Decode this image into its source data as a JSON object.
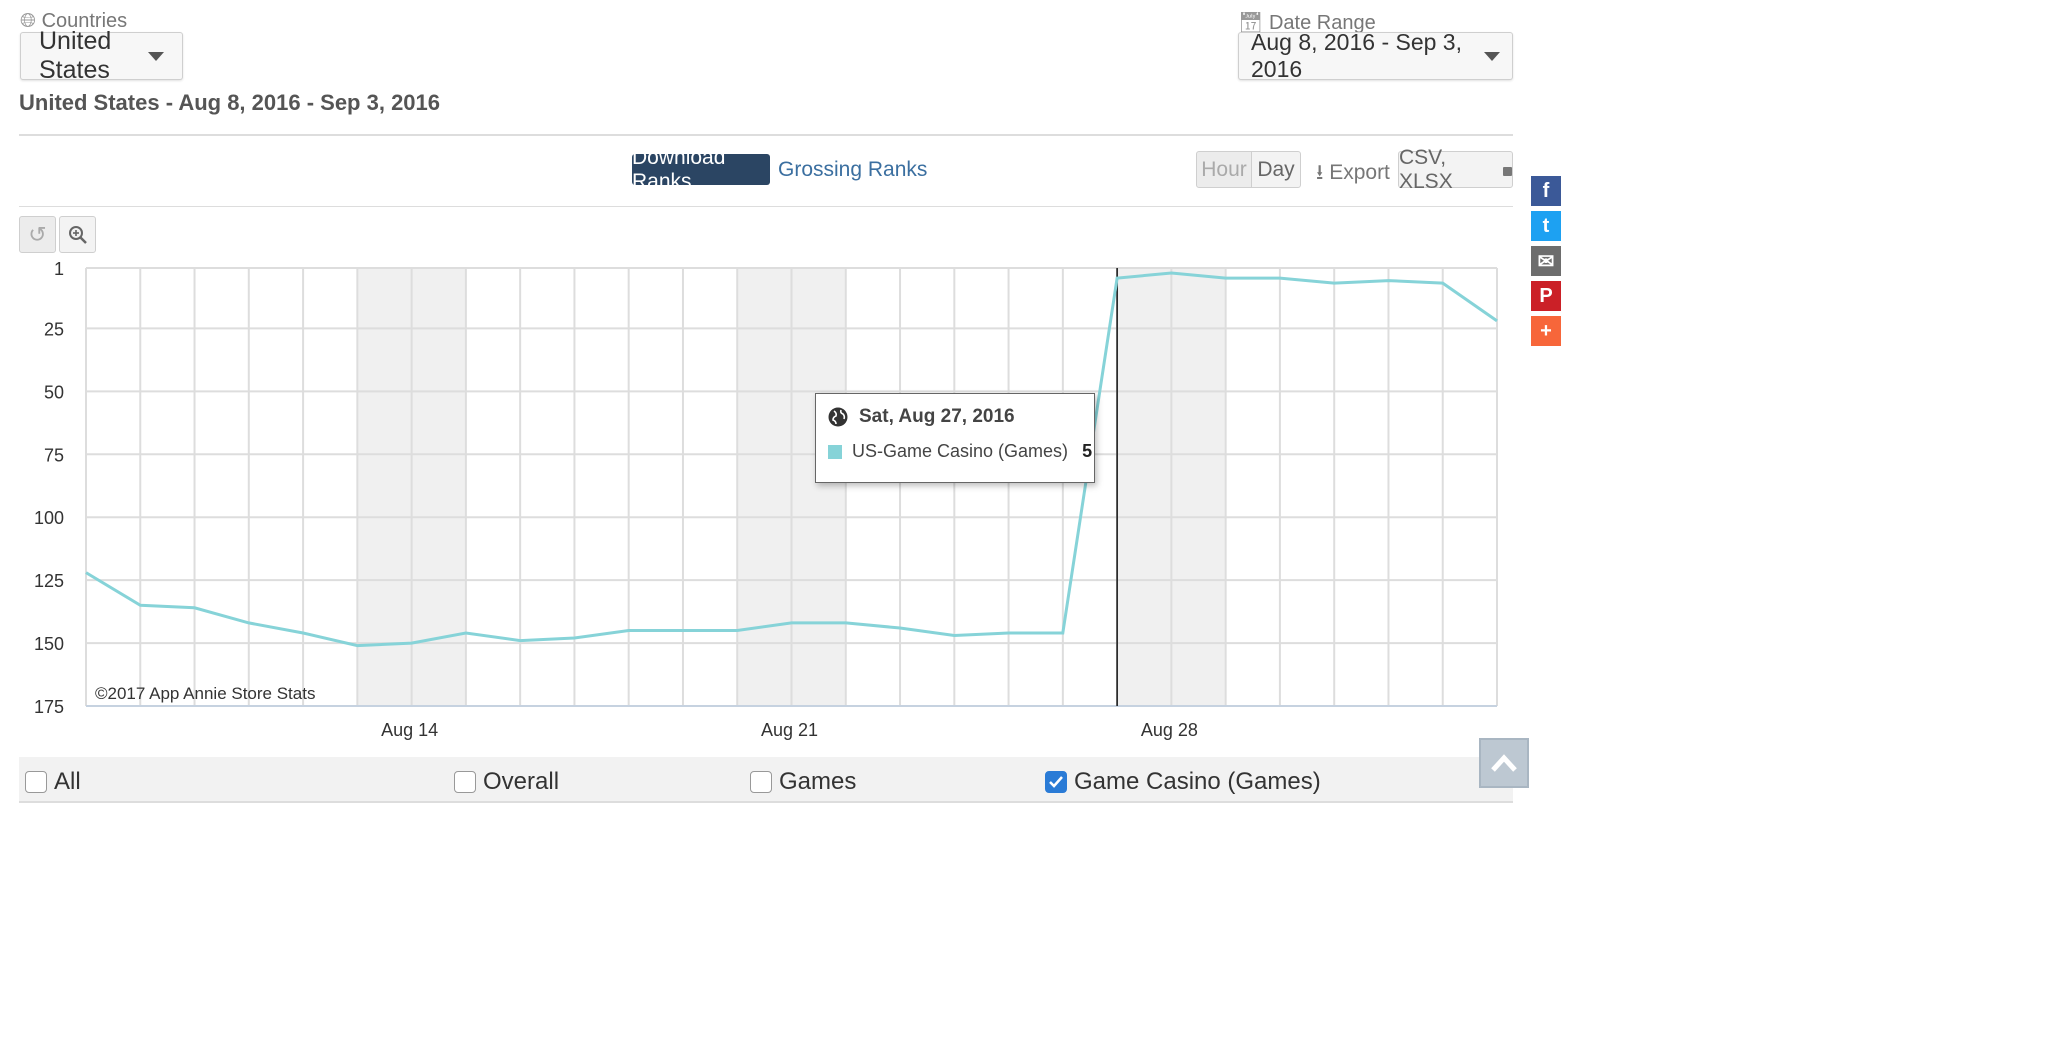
{
  "countries": {
    "label": "Countries",
    "icon": "globe-icon",
    "value": "United States"
  },
  "date_range": {
    "label": "Date Range",
    "icon": "calendar-icon",
    "value": "Aug 8, 2016 - Sep 3, 2016"
  },
  "subtitle": "United States - Aug 8, 2016 - Sep 3, 2016",
  "tabs": {
    "download": "Download Ranks",
    "grossing": "Grossing Ranks"
  },
  "granularity": {
    "hour": "Hour",
    "day": "Day"
  },
  "export": {
    "label": "Export",
    "formats": "CSV, XLSX"
  },
  "share": [
    {
      "name": "facebook",
      "glyph": "f",
      "color": "#3b5998"
    },
    {
      "name": "twitter",
      "glyph": "t",
      "color": "#1da1f2"
    },
    {
      "name": "email",
      "glyph": "✉",
      "color": "#6d6d6d"
    },
    {
      "name": "pinterest",
      "glyph": "P",
      "color": "#cb2027"
    },
    {
      "name": "more",
      "glyph": "+",
      "color": "#f7663a"
    }
  ],
  "tooltip": {
    "date": "Sat, Aug 27, 2016",
    "series": "US-Game Casino (Games)",
    "value": "5"
  },
  "watermark": "©2017 App Annie Store Stats",
  "legend": {
    "all": "All",
    "overall": "Overall",
    "games": "Games",
    "casino": "Game Casino (Games)"
  },
  "colors": {
    "series": "#86d3d8",
    "accent": "#2b4563",
    "weekend": "#f0f0f0"
  },
  "chart_data": {
    "type": "line",
    "series": [
      {
        "name": "US-Game Casino (Games)",
        "x": [
          "2016-08-08",
          "2016-08-09",
          "2016-08-10",
          "2016-08-11",
          "2016-08-12",
          "2016-08-13",
          "2016-08-14",
          "2016-08-15",
          "2016-08-16",
          "2016-08-17",
          "2016-08-18",
          "2016-08-19",
          "2016-08-20",
          "2016-08-21",
          "2016-08-22",
          "2016-08-23",
          "2016-08-24",
          "2016-08-25",
          "2016-08-26",
          "2016-08-27",
          "2016-08-28",
          "2016-08-29",
          "2016-08-30",
          "2016-08-31",
          "2016-09-01",
          "2016-09-02",
          "2016-09-03"
        ],
        "values": [
          122,
          135,
          136,
          142,
          146,
          151,
          150,
          146,
          149,
          148,
          145,
          145,
          145,
          142,
          142,
          144,
          147,
          146,
          146,
          5,
          3,
          5,
          5,
          7,
          6,
          7,
          22
        ]
      }
    ],
    "x_tick_labels": [
      "Aug 14",
      "Aug 21",
      "Aug 28"
    ],
    "y_ticks": [
      1,
      25,
      50,
      75,
      100,
      125,
      150,
      175
    ],
    "y_reversed": true,
    "ylim": [
      1,
      175
    ],
    "grid": true,
    "highlighted_date": "2016-08-27",
    "weekend_shading": true
  }
}
